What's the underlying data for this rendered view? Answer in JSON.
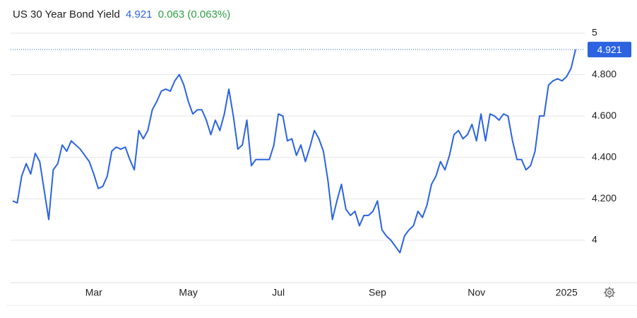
{
  "chart_data": {
    "type": "line",
    "title": "US 30 Year Bond Yield",
    "last": 4.921,
    "change": "0.063 (0.063%)",
    "color": "#2b63e0",
    "categories": [
      null,
      null,
      null,
      null,
      null,
      null,
      null,
      null,
      null,
      null,
      null,
      null,
      null,
      null,
      null,
      null,
      null,
      null,
      "Mar",
      null,
      null,
      null,
      null,
      null,
      null,
      null,
      null,
      null,
      null,
      null,
      null,
      null,
      null,
      null,
      null,
      null,
      null,
      null,
      null,
      "May",
      null,
      null,
      null,
      null,
      null,
      null,
      null,
      null,
      null,
      null,
      null,
      null,
      null,
      null,
      null,
      null,
      null,
      null,
      null,
      "Jul",
      null,
      null,
      null,
      null,
      null,
      null,
      null,
      null,
      null,
      null,
      null,
      null,
      null,
      null,
      null,
      null,
      null,
      null,
      null,
      null,
      null,
      "Sep",
      null,
      null,
      null,
      null,
      null,
      null,
      null,
      null,
      null,
      null,
      null,
      null,
      null,
      null,
      null,
      null,
      null,
      null,
      null,
      null,
      null,
      "Nov",
      null,
      null,
      null,
      null,
      null,
      null,
      null,
      null,
      null,
      null,
      null,
      null,
      null,
      null,
      null,
      null,
      null,
      null,
      null,
      "2025",
      null,
      null
    ],
    "values": [
      4.19,
      4.18,
      4.31,
      4.37,
      4.32,
      4.42,
      4.38,
      4.24,
      4.1,
      4.34,
      4.37,
      4.46,
      4.43,
      4.48,
      4.46,
      4.44,
      4.41,
      4.38,
      4.32,
      4.25,
      4.26,
      4.31,
      4.43,
      4.45,
      4.44,
      4.45,
      4.39,
      4.34,
      4.53,
      4.49,
      4.53,
      4.63,
      4.67,
      4.72,
      4.73,
      4.72,
      4.77,
      4.8,
      4.75,
      4.67,
      4.61,
      4.63,
      4.63,
      4.58,
      4.51,
      4.58,
      4.53,
      4.61,
      4.73,
      4.6,
      4.44,
      4.46,
      4.58,
      4.36,
      4.39,
      4.39,
      4.39,
      4.39,
      4.46,
      4.61,
      4.6,
      4.48,
      4.49,
      4.41,
      4.46,
      4.38,
      4.45,
      4.53,
      4.49,
      4.43,
      4.29,
      4.1,
      4.19,
      4.27,
      4.15,
      4.12,
      4.14,
      4.07,
      4.12,
      4.12,
      4.14,
      4.19,
      4.05,
      4.02,
      4.0,
      3.97,
      3.94,
      4.02,
      4.05,
      4.07,
      4.14,
      4.11,
      4.17,
      4.27,
      4.31,
      4.38,
      4.34,
      4.41,
      4.51,
      4.53,
      4.49,
      4.51,
      4.56,
      4.48,
      4.61,
      4.48,
      4.61,
      4.6,
      4.58,
      4.61,
      4.6,
      4.48,
      4.39,
      4.39,
      4.34,
      4.36,
      4.43,
      4.6,
      4.6,
      4.75,
      4.77,
      4.78,
      4.77,
      4.79,
      4.83,
      4.921
    ],
    "ylim": [
      3.8,
      5.15
    ],
    "yticks": [
      {
        "value": 4,
        "label": "4"
      },
      {
        "value": 4.2,
        "label": "4.200"
      },
      {
        "value": 4.4,
        "label": "4.400"
      },
      {
        "value": 4.6,
        "label": "4.600"
      },
      {
        "value": 4.8,
        "label": "4.800"
      },
      5
    ],
    "grid": true
  }
}
